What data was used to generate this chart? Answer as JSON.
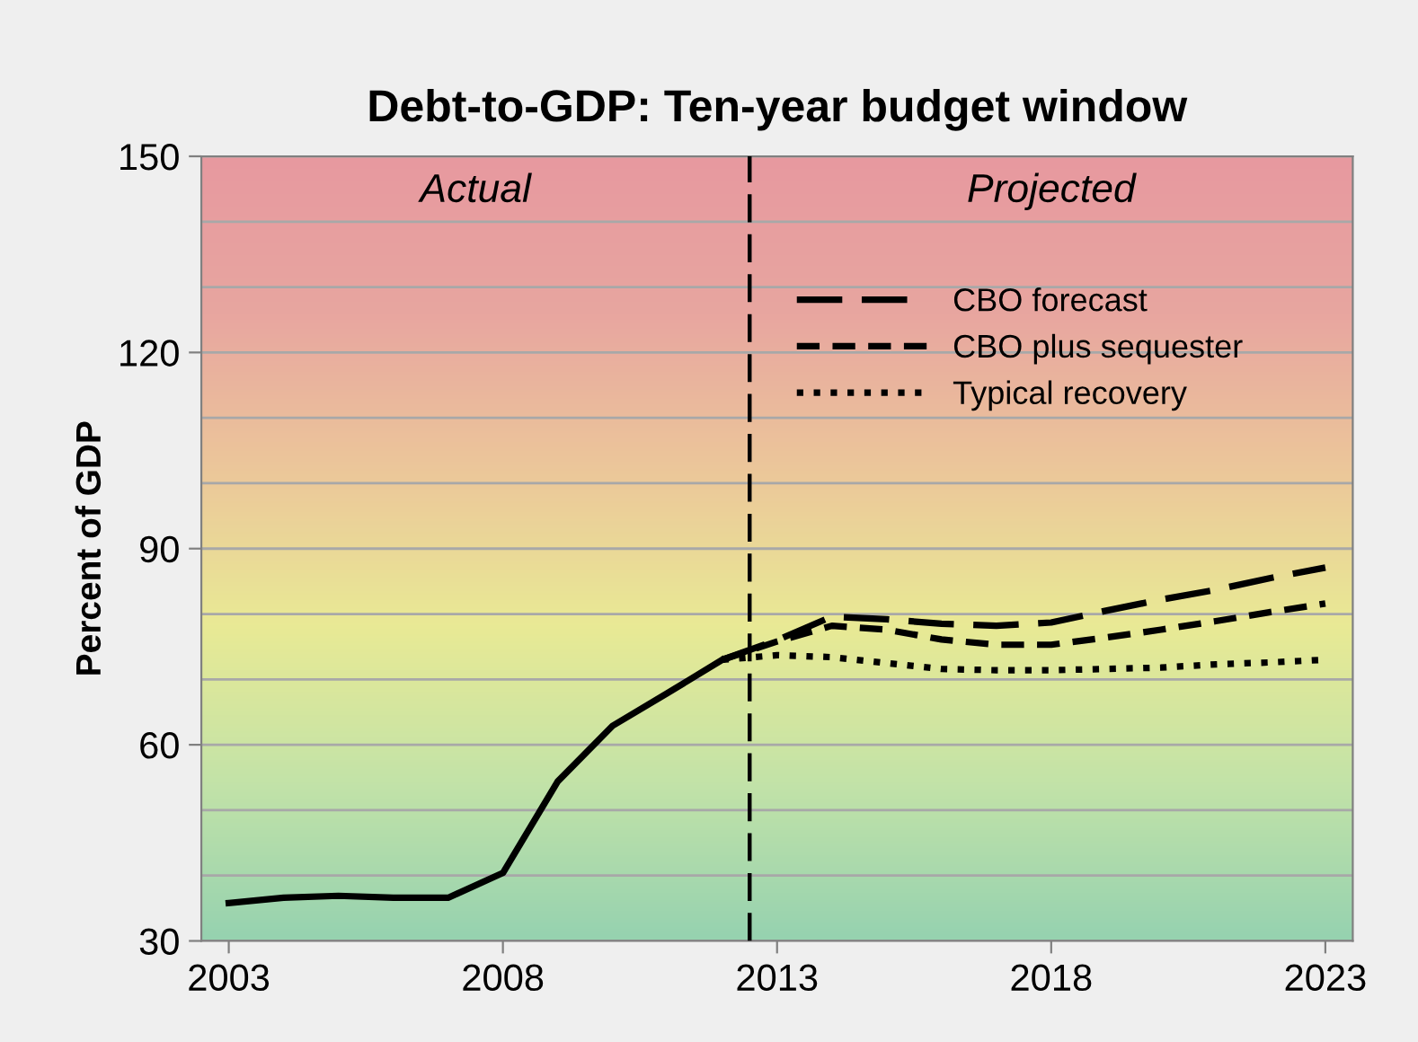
{
  "chart_data": {
    "type": "line",
    "title": "Debt-to-GDP: Ten-year budget window",
    "ylabel": "Percent of GDP",
    "annotations": [
      "Actual",
      "Projected"
    ],
    "series": [
      {
        "color": "#000000",
        "line_style": "solid",
        "x": [
          2003,
          2004,
          2005,
          2006,
          2007,
          2008,
          2009,
          2010,
          2011,
          2012
        ],
        "values": [
          35.8,
          36.6,
          36.9,
          36.6,
          36.6,
          40.4,
          54.4,
          62.9,
          67.9,
          73.0
        ]
      },
      {
        "name": "CBO forecast",
        "color": "#000000",
        "line_style": "dashed",
        "x": [
          2012,
          2013,
          2014,
          2015,
          2016,
          2017,
          2018,
          2019,
          2020,
          2021,
          2022,
          2023
        ],
        "values": [
          73.0,
          76.0,
          79.6,
          79.2,
          78.5,
          78.2,
          78.7,
          80.5,
          82.2,
          83.7,
          85.5,
          87.1
        ]
      },
      {
        "name": "CBO plus sequester",
        "color": "#000000",
        "line_style": "dashed",
        "x": [
          2012,
          2013,
          2014,
          2015,
          2016,
          2017,
          2018,
          2019,
          2020,
          2021,
          2022,
          2023
        ],
        "values": [
          73.0,
          75.8,
          78.2,
          77.6,
          76.1,
          75.3,
          75.3,
          76.4,
          77.6,
          78.9,
          80.3,
          81.6
        ]
      },
      {
        "name": "Typical recovery",
        "color": "#000000",
        "line_style": "dotted",
        "x": [
          2012,
          2013,
          2014,
          2015,
          2016,
          2017,
          2018,
          2019,
          2020,
          2021,
          2022,
          2023
        ],
        "values": [
          73.0,
          73.7,
          73.4,
          72.5,
          71.6,
          71.4,
          71.4,
          71.6,
          71.8,
          72.3,
          72.6,
          73.0
        ]
      }
    ],
    "xlim": [
      2002.5,
      2023.5
    ],
    "xticks": [
      2003,
      2008,
      2013,
      2018,
      2023
    ],
    "ylim": [
      30,
      150
    ],
    "yticks": [
      30,
      60,
      90,
      120,
      150,
      {
        "value": 40,
        "label": null
      },
      {
        "value": 50,
        "label": null
      },
      {
        "value": 70,
        "label": null
      },
      {
        "value": 80,
        "label": null
      },
      {
        "value": 100,
        "label": null
      },
      {
        "value": 110,
        "label": null
      },
      {
        "value": 130,
        "label": null
      },
      {
        "value": 140,
        "label": null
      }
    ],
    "ref_lines": [
      {
        "axis": "x",
        "value": 2012.5,
        "color": "#000000",
        "line_style": "dashed"
      }
    ],
    "grid": "y",
    "legend": "top right",
    "marker": "none"
  }
}
